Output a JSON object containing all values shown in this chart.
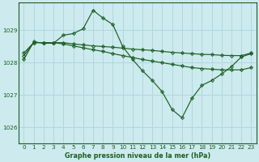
{
  "bg_color": "#cdeaee",
  "grid_color": "#aed8de",
  "line_color": "#1a6020",
  "title": "Graphe pression niveau de la mer (hPa)",
  "ylim": [
    1025.5,
    1029.85
  ],
  "yticks": [
    1026,
    1027,
    1028,
    1029
  ],
  "xlim": [
    -0.5,
    23.5
  ],
  "xticks": [
    0,
    1,
    2,
    3,
    4,
    5,
    6,
    7,
    8,
    9,
    10,
    11,
    12,
    13,
    14,
    15,
    16,
    17,
    18,
    19,
    20,
    21,
    22,
    23
  ],
  "s1_x": [
    0,
    1,
    2,
    3,
    4,
    5,
    6,
    7,
    8,
    9,
    10,
    11,
    12,
    13,
    14,
    15,
    16,
    17,
    18,
    19,
    20,
    21,
    22,
    23
  ],
  "s1_y": [
    1028.1,
    1028.65,
    1028.6,
    1028.6,
    1028.85,
    1028.9,
    1029.05,
    1029.62,
    1029.38,
    1029.18,
    1028.5,
    1028.1,
    1027.75,
    1027.45,
    1027.1,
    1026.55,
    1026.3,
    1026.9,
    1027.3,
    1027.45,
    1027.65,
    1027.88,
    1028.18,
    1028.28
  ],
  "s2_x": [
    0,
    1,
    2,
    3,
    4,
    5,
    6,
    7,
    8,
    9,
    10,
    11,
    12,
    13,
    14,
    15,
    16,
    17,
    18,
    19,
    20,
    21,
    22,
    23
  ],
  "s2_y": [
    1028.3,
    1028.62,
    1028.62,
    1028.62,
    1028.62,
    1028.58,
    1028.55,
    1028.52,
    1028.5,
    1028.48,
    1028.45,
    1028.42,
    1028.4,
    1028.38,
    1028.35,
    1028.32,
    1028.3,
    1028.28,
    1028.26,
    1028.25,
    1028.23,
    1028.22,
    1028.22,
    1028.3
  ],
  "s3_x": [
    0,
    1,
    2,
    3,
    4,
    5,
    6,
    7,
    8,
    9,
    10,
    11,
    12,
    13,
    14,
    15,
    16,
    17,
    18,
    19,
    20,
    21,
    22,
    23
  ],
  "s3_y": [
    1028.22,
    1028.62,
    1028.62,
    1028.62,
    1028.58,
    1028.52,
    1028.46,
    1028.4,
    1028.35,
    1028.28,
    1028.22,
    1028.16,
    1028.1,
    1028.05,
    1028.0,
    1027.95,
    1027.9,
    1027.85,
    1027.82,
    1027.8,
    1027.78,
    1027.78,
    1027.78,
    1027.85
  ]
}
